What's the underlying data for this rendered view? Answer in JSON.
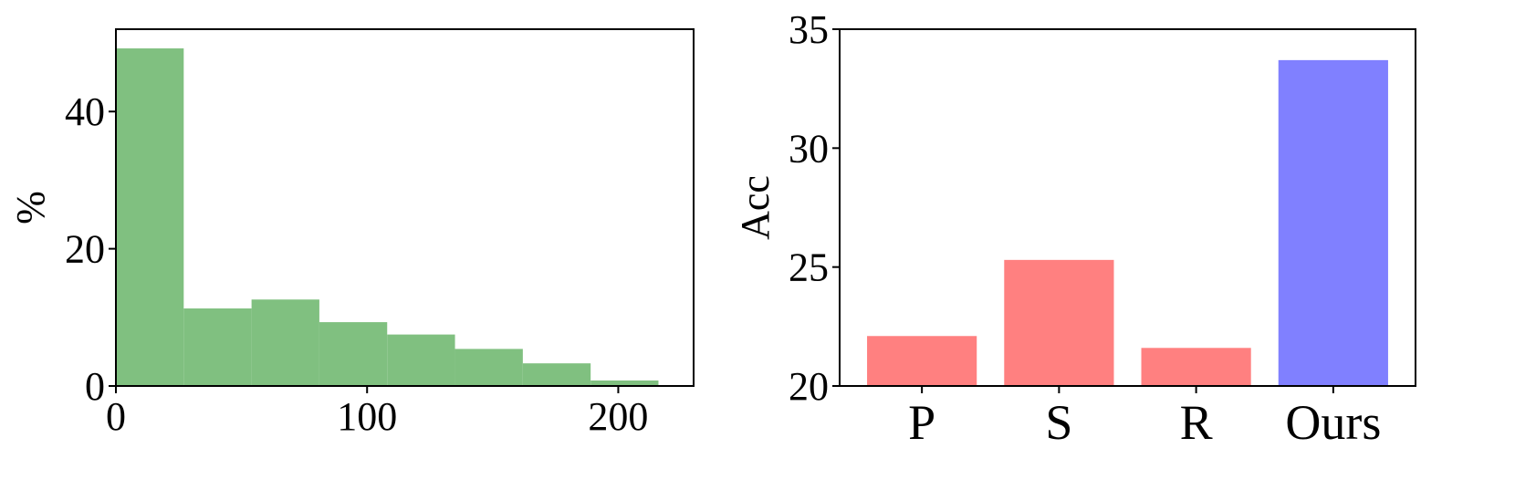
{
  "chart_data": [
    {
      "type": "bar",
      "title": "",
      "xlabel": "",
      "ylabel": "%",
      "bin_edges": [
        0,
        27,
        54,
        81,
        108,
        135,
        162,
        189,
        216
      ],
      "values": [
        49.2,
        11.3,
        12.6,
        9.3,
        7.5,
        5.4,
        3.3,
        0.8
      ],
      "xlim": [
        0,
        230
      ],
      "ylim": [
        0,
        52
      ],
      "xticks": [
        "0",
        "100",
        "200"
      ],
      "yticks": [
        "0",
        "20",
        "40"
      ],
      "grid": false,
      "colors": {
        "bars": "#80c080"
      }
    },
    {
      "type": "bar",
      "title": "",
      "xlabel": "",
      "ylabel": "Acc",
      "categories": [
        "P",
        "S",
        "R",
        "Ours"
      ],
      "values": [
        22.1,
        25.3,
        21.6,
        33.7
      ],
      "ylim": [
        20,
        35
      ],
      "yticks": [
        "20",
        "25",
        "30",
        "35"
      ],
      "grid": false,
      "colors": {
        "baseline": "#ff8080",
        "ours": "#8080ff"
      }
    }
  ]
}
